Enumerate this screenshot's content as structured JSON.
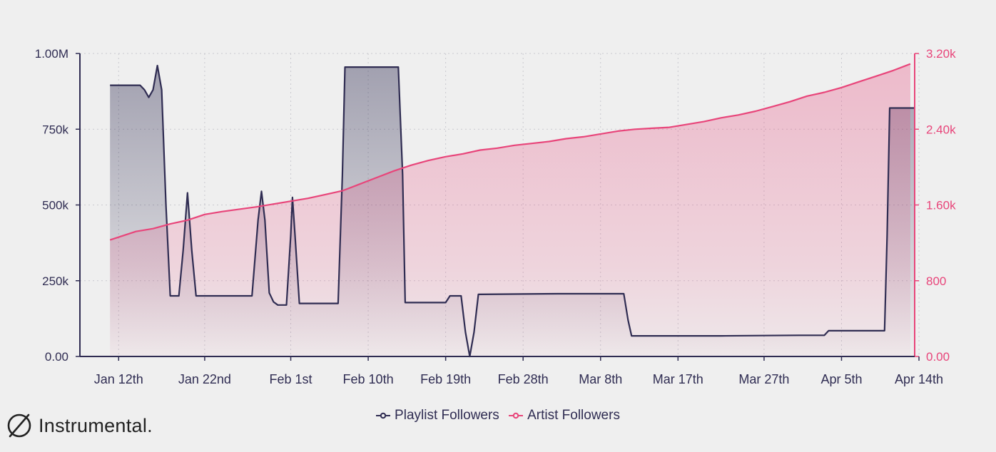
{
  "brand": {
    "name": "Instrumental.",
    "logo_icon": "slashed-circle-icon"
  },
  "legend": [
    {
      "label": "Playlist Followers",
      "color": "#2f2c52"
    },
    {
      "label": "Artist Followers",
      "color": "#e8457a"
    }
  ],
  "chart_data": {
    "type": "line",
    "title": "",
    "x_tick_labels": [
      "Jan 12th",
      "Jan 22nd",
      "Feb 1st",
      "Feb 10th",
      "Feb 19th",
      "Feb 28th",
      "Mar 8th",
      "Mar 17th",
      "Mar 27th",
      "Apr 5th",
      "Apr 14th"
    ],
    "x_tick_days": [
      12,
      22,
      32,
      41,
      50,
      59,
      68,
      77,
      87,
      96,
      105
    ],
    "xlim_days": [
      7.5,
      104.5
    ],
    "y_left": {
      "label": "",
      "ylim": [
        0,
        1000000
      ],
      "tick_labels": [
        "0.00",
        "250k",
        "500k",
        "750k",
        "1.00M"
      ],
      "ticks": [
        0,
        250000,
        500000,
        750000,
        1000000
      ]
    },
    "y_right": {
      "label": "",
      "ylim": [
        0,
        3200
      ],
      "tick_labels": [
        "0.00",
        "800",
        "1.60k",
        "2.40k",
        "3.20k"
      ],
      "ticks": [
        0,
        800,
        1600,
        2400,
        3200
      ]
    },
    "grid": true,
    "series": [
      {
        "name": "Playlist Followers",
        "axis": "left",
        "color": "#2f2c52",
        "points": [
          [
            11,
            895000
          ],
          [
            13,
            895000
          ],
          [
            14.5,
            895000
          ],
          [
            15,
            880000
          ],
          [
            15.5,
            855000
          ],
          [
            16,
            880000
          ],
          [
            16.5,
            960000
          ],
          [
            17,
            880000
          ],
          [
            17.5,
            500000
          ],
          [
            18,
            200000
          ],
          [
            19,
            200000
          ],
          [
            19.5,
            350000
          ],
          [
            20,
            540000
          ],
          [
            20.5,
            350000
          ],
          [
            21,
            200000
          ],
          [
            25,
            200000
          ],
          [
            27.5,
            200000
          ],
          [
            28.2,
            450000
          ],
          [
            28.6,
            545000
          ],
          [
            29,
            450000
          ],
          [
            29.5,
            210000
          ],
          [
            30,
            180000
          ],
          [
            30.5,
            170000
          ],
          [
            31.5,
            170000
          ],
          [
            32,
            400000
          ],
          [
            32.2,
            525000
          ],
          [
            32.5,
            400000
          ],
          [
            33,
            175000
          ],
          [
            37.5,
            175000
          ],
          [
            38,
            600000
          ],
          [
            38.3,
            955000
          ],
          [
            44.5,
            955000
          ],
          [
            45,
            600000
          ],
          [
            45.3,
            178000
          ],
          [
            50,
            178000
          ],
          [
            50.5,
            200000
          ],
          [
            51.8,
            200000
          ],
          [
            52.3,
            80000
          ],
          [
            52.8,
            0
          ],
          [
            53.3,
            80000
          ],
          [
            53.8,
            205000
          ],
          [
            63,
            207000
          ],
          [
            70,
            207000
          ],
          [
            70.7,
            207000
          ],
          [
            71.2,
            120000
          ],
          [
            71.6,
            68000
          ],
          [
            82,
            68000
          ],
          [
            91,
            70000
          ],
          [
            94,
            70000
          ],
          [
            94.5,
            85000
          ],
          [
            101,
            85000
          ],
          [
            101.3,
            400000
          ],
          [
            101.6,
            820000
          ],
          [
            104.5,
            820000
          ]
        ]
      },
      {
        "name": "Artist Followers",
        "axis": "right",
        "color": "#e8457a",
        "points": [
          [
            11,
            1230
          ],
          [
            14,
            1320
          ],
          [
            16,
            1350
          ],
          [
            18,
            1400
          ],
          [
            20,
            1440
          ],
          [
            22,
            1500
          ],
          [
            24,
            1530
          ],
          [
            28,
            1580
          ],
          [
            32,
            1640
          ],
          [
            34,
            1670
          ],
          [
            36,
            1710
          ],
          [
            38,
            1750
          ],
          [
            40,
            1820
          ],
          [
            42,
            1890
          ],
          [
            44,
            1960
          ],
          [
            46,
            2020
          ],
          [
            48,
            2070
          ],
          [
            50,
            2110
          ],
          [
            52,
            2140
          ],
          [
            54,
            2180
          ],
          [
            56,
            2200
          ],
          [
            58,
            2230
          ],
          [
            60,
            2250
          ],
          [
            62,
            2270
          ],
          [
            64,
            2300
          ],
          [
            66,
            2320
          ],
          [
            68,
            2350
          ],
          [
            70,
            2380
          ],
          [
            72,
            2400
          ],
          [
            74,
            2410
          ],
          [
            76,
            2420
          ],
          [
            78,
            2450
          ],
          [
            80,
            2480
          ],
          [
            82,
            2520
          ],
          [
            84,
            2550
          ],
          [
            86,
            2590
          ],
          [
            88,
            2640
          ],
          [
            90,
            2690
          ],
          [
            92,
            2750
          ],
          [
            94,
            2790
          ],
          [
            96,
            2840
          ],
          [
            98,
            2900
          ],
          [
            100,
            2960
          ],
          [
            102,
            3020
          ],
          [
            104,
            3090
          ]
        ]
      }
    ]
  }
}
